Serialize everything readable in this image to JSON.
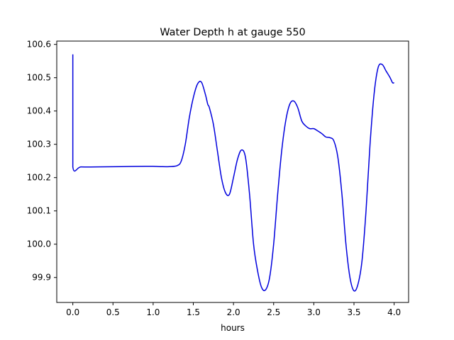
{
  "chart_data": {
    "type": "line",
    "title": "Water Depth h at gauge 550",
    "xlabel": "hours",
    "ylabel": "",
    "xlim": [
      -0.2,
      4.18
    ],
    "ylim": [
      99.825,
      100.61
    ],
    "xticks": [
      0.0,
      0.5,
      1.0,
      1.5,
      2.0,
      2.5,
      3.0,
      3.5,
      4.0
    ],
    "xtick_labels": [
      "0.0",
      "0.5",
      "1.0",
      "1.5",
      "2.0",
      "2.5",
      "3.0",
      "3.5",
      "4.0"
    ],
    "yticks": [
      99.9,
      100.0,
      100.1,
      100.2,
      100.3,
      100.4,
      100.5,
      100.6
    ],
    "ytick_labels": [
      "99.9",
      "100.0",
      "100.1",
      "100.2",
      "100.3",
      "100.4",
      "100.5",
      "100.6"
    ],
    "grid": false,
    "series": [
      {
        "name": "",
        "color": "#0000dd",
        "x": [
          0.0,
          0.0,
          0.0,
          0.1,
          0.3,
          0.6,
          0.9,
          1.0,
          1.1,
          1.2,
          1.3,
          1.35,
          1.4,
          1.45,
          1.5,
          1.55,
          1.6,
          1.65,
          1.68,
          1.7,
          1.75,
          1.8,
          1.85,
          1.9,
          1.95,
          2.0,
          2.05,
          2.1,
          2.15,
          2.2,
          2.25,
          2.3,
          2.35,
          2.4,
          2.45,
          2.5,
          2.55,
          2.6,
          2.65,
          2.7,
          2.75,
          2.8,
          2.85,
          2.9,
          2.95,
          3.0,
          3.05,
          3.1,
          3.15,
          3.2,
          3.25,
          3.3,
          3.35,
          3.4,
          3.45,
          3.5,
          3.55,
          3.6,
          3.65,
          3.7,
          3.75,
          3.8,
          3.85,
          3.9,
          3.95,
          3.98,
          4.0
        ],
        "y": [
          100.57,
          100.4,
          100.232,
          100.232,
          100.232,
          100.233,
          100.234,
          100.234,
          100.233,
          100.233,
          100.236,
          100.25,
          100.3,
          100.38,
          100.44,
          100.48,
          100.487,
          100.45,
          100.42,
          100.41,
          100.36,
          100.28,
          100.2,
          100.155,
          100.15,
          100.2,
          100.255,
          100.283,
          100.26,
          100.15,
          100.0,
          99.92,
          99.87,
          99.863,
          99.9,
          100.0,
          100.15,
          100.28,
          100.37,
          100.42,
          100.43,
          100.41,
          100.37,
          100.355,
          100.347,
          100.347,
          100.34,
          100.332,
          100.322,
          100.32,
          100.31,
          100.26,
          100.15,
          100.0,
          99.9,
          99.86,
          99.88,
          99.95,
          100.1,
          100.3,
          100.45,
          100.53,
          100.54,
          100.52,
          100.5,
          100.485,
          100.485
        ]
      }
    ]
  }
}
